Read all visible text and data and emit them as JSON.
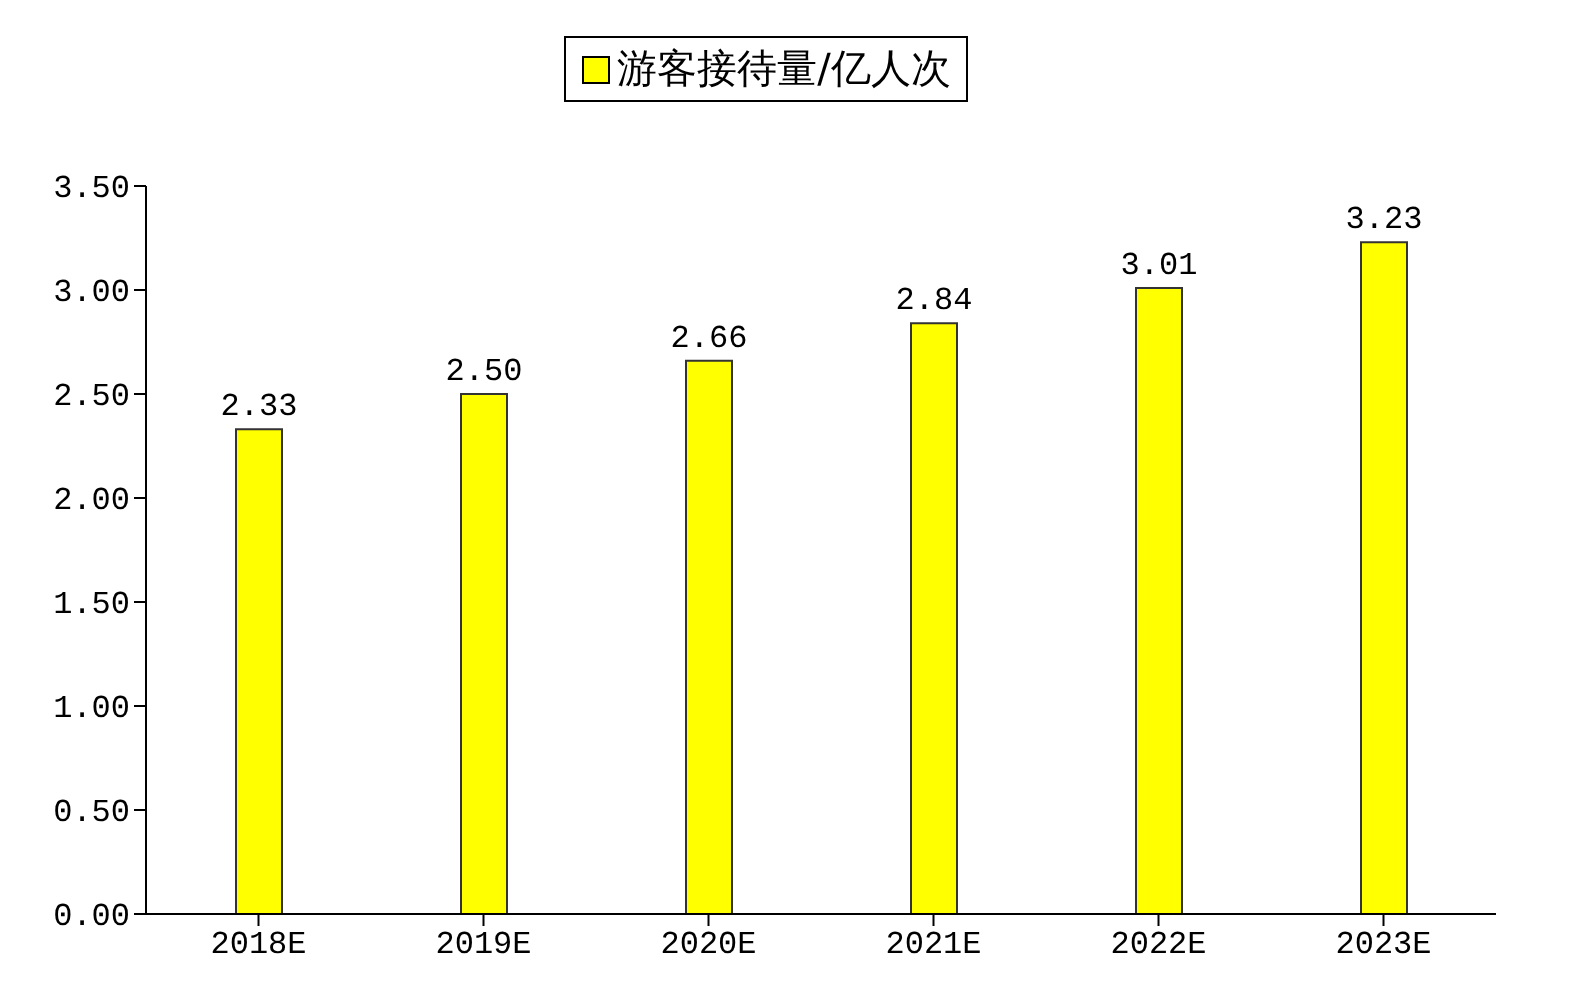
{
  "chart_data": {
    "type": "bar",
    "categories": [
      "2018E",
      "2019E",
      "2020E",
      "2021E",
      "2022E",
      "2023E"
    ],
    "series": [
      {
        "name": "游客接待量/亿人次",
        "color": "#ffff00",
        "values": [
          2.33,
          2.5,
          2.66,
          2.84,
          3.01,
          3.23
        ],
        "value_labels": [
          "2.33",
          "2.50",
          "2.66",
          "2.84",
          "3.01",
          "3.23"
        ]
      }
    ],
    "ylim": [
      0,
      3.5
    ],
    "yticks": [
      {
        "value": 0,
        "label": "0.00"
      },
      {
        "value": 0.5,
        "label": "0.50"
      },
      {
        "value": 1,
        "label": "1.00"
      },
      {
        "value": 1.5,
        "label": "1.50"
      },
      {
        "value": 2,
        "label": "2.00"
      },
      {
        "value": 2.5,
        "label": "2.50"
      },
      {
        "value": 3,
        "label": "3.00"
      },
      {
        "value": 3.5,
        "label": "3.50"
      }
    ],
    "grid": false,
    "legend": "top"
  }
}
